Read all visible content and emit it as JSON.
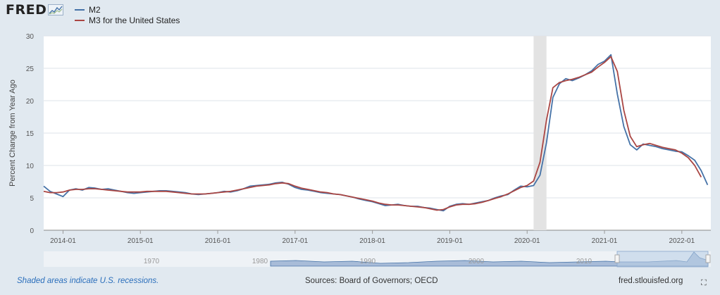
{
  "logo": {
    "text": "FRED",
    "icon": "fred-sparkline-icon"
  },
  "legend": [
    {
      "label": "M2",
      "color": "#4572a7"
    },
    {
      "label": "M3 for the United States",
      "color": "#aa4643"
    }
  ],
  "footer": {
    "recessions_note": "Shaded areas indicate U.S. recessions.",
    "sources": "Sources: Board of Governors; OECD",
    "site": "fred.stlouisfed.org"
  },
  "fullscreen_icon": "fullscreen-icon",
  "chart_data": {
    "type": "line",
    "ylabel": "Percent Change from Year Ago",
    "ylim": [
      0,
      30
    ],
    "y_ticks": [
      0,
      5,
      10,
      15,
      20,
      25,
      30
    ],
    "x_range": [
      "2013-10",
      "2022-05"
    ],
    "x_ticks": [
      "2014-01",
      "2015-01",
      "2016-01",
      "2017-01",
      "2018-01",
      "2019-01",
      "2020-01",
      "2021-01",
      "2022-01"
    ],
    "grid": "horizontal",
    "legend_position": "top-left",
    "recession": {
      "start": "2020-02",
      "end": "2020-04"
    },
    "series": [
      {
        "name": "M2",
        "color": "#4572a7",
        "x": [
          "2013-10",
          "2013-11",
          "2013-12",
          "2014-01",
          "2014-02",
          "2014-03",
          "2014-04",
          "2014-05",
          "2014-06",
          "2014-07",
          "2014-08",
          "2014-09",
          "2014-10",
          "2014-11",
          "2014-12",
          "2015-01",
          "2015-02",
          "2015-03",
          "2015-04",
          "2015-05",
          "2015-06",
          "2015-07",
          "2015-08",
          "2015-09",
          "2015-10",
          "2015-11",
          "2015-12",
          "2016-01",
          "2016-02",
          "2016-03",
          "2016-04",
          "2016-05",
          "2016-06",
          "2016-07",
          "2016-08",
          "2016-09",
          "2016-10",
          "2016-11",
          "2016-12",
          "2017-01",
          "2017-02",
          "2017-03",
          "2017-04",
          "2017-05",
          "2017-06",
          "2017-07",
          "2017-08",
          "2017-09",
          "2017-10",
          "2017-11",
          "2017-12",
          "2018-01",
          "2018-02",
          "2018-03",
          "2018-04",
          "2018-05",
          "2018-06",
          "2018-07",
          "2018-08",
          "2018-09",
          "2018-10",
          "2018-11",
          "2018-12",
          "2019-01",
          "2019-02",
          "2019-03",
          "2019-04",
          "2019-05",
          "2019-06",
          "2019-07",
          "2019-08",
          "2019-09",
          "2019-10",
          "2019-11",
          "2019-12",
          "2020-01",
          "2020-02",
          "2020-03",
          "2020-04",
          "2020-05",
          "2020-06",
          "2020-07",
          "2020-08",
          "2020-09",
          "2020-10",
          "2020-11",
          "2020-12",
          "2021-01",
          "2021-02",
          "2021-03",
          "2021-04",
          "2021-05",
          "2021-06",
          "2021-07",
          "2021-08",
          "2021-09",
          "2021-10",
          "2021-11",
          "2021-12",
          "2022-01",
          "2022-02",
          "2022-03",
          "2022-04",
          "2022-05"
        ],
        "values": [
          6.8,
          6.0,
          5.6,
          5.2,
          6.2,
          6.4,
          6.2,
          6.6,
          6.5,
          6.3,
          6.4,
          6.2,
          6.0,
          5.8,
          5.7,
          5.8,
          5.9,
          6.0,
          6.1,
          6.1,
          6.0,
          5.9,
          5.8,
          5.6,
          5.5,
          5.6,
          5.7,
          5.8,
          6.0,
          5.9,
          6.1,
          6.4,
          6.8,
          6.9,
          7.0,
          7.1,
          7.3,
          7.4,
          7.1,
          6.6,
          6.3,
          6.2,
          6.0,
          5.8,
          5.7,
          5.6,
          5.5,
          5.3,
          5.1,
          4.8,
          4.6,
          4.4,
          4.1,
          3.8,
          3.9,
          4.0,
          3.8,
          3.7,
          3.7,
          3.5,
          3.4,
          3.2,
          3.0,
          3.7,
          4.0,
          4.1,
          4.0,
          4.2,
          4.4,
          4.6,
          5.0,
          5.3,
          5.5,
          6.2,
          6.8,
          6.7,
          6.9,
          8.5,
          13.5,
          20.5,
          22.6,
          23.4,
          23.1,
          23.5,
          24.0,
          24.6,
          25.6,
          26.1,
          27.1,
          21.0,
          16.0,
          13.2,
          12.4,
          13.3,
          13.1,
          12.9,
          12.6,
          12.4,
          12.2,
          12.1,
          11.5,
          10.8,
          9.2,
          7.0
        ]
      },
      {
        "name": "M3 for the United States",
        "color": "#aa4643",
        "x": [
          "2013-10",
          "2013-11",
          "2013-12",
          "2014-01",
          "2014-02",
          "2014-03",
          "2014-04",
          "2014-05",
          "2014-06",
          "2014-07",
          "2014-08",
          "2014-09",
          "2014-10",
          "2014-11",
          "2014-12",
          "2015-01",
          "2015-02",
          "2015-03",
          "2015-04",
          "2015-05",
          "2015-06",
          "2015-07",
          "2015-08",
          "2015-09",
          "2015-10",
          "2015-11",
          "2015-12",
          "2016-01",
          "2016-02",
          "2016-03",
          "2016-04",
          "2016-05",
          "2016-06",
          "2016-07",
          "2016-08",
          "2016-09",
          "2016-10",
          "2016-11",
          "2016-12",
          "2017-01",
          "2017-02",
          "2017-03",
          "2017-04",
          "2017-05",
          "2017-06",
          "2017-07",
          "2017-08",
          "2017-09",
          "2017-10",
          "2017-11",
          "2017-12",
          "2018-01",
          "2018-02",
          "2018-03",
          "2018-04",
          "2018-05",
          "2018-06",
          "2018-07",
          "2018-08",
          "2018-09",
          "2018-10",
          "2018-11",
          "2018-12",
          "2019-01",
          "2019-02",
          "2019-03",
          "2019-04",
          "2019-05",
          "2019-06",
          "2019-07",
          "2019-08",
          "2019-09",
          "2019-10",
          "2019-11",
          "2019-12",
          "2020-01",
          "2020-02",
          "2020-03",
          "2020-04",
          "2020-05",
          "2020-06",
          "2020-07",
          "2020-08",
          "2020-09",
          "2020-10",
          "2020-11",
          "2020-12",
          "2021-01",
          "2021-02",
          "2021-03",
          "2021-04",
          "2021-05",
          "2021-06",
          "2021-07",
          "2021-08",
          "2021-09",
          "2021-10",
          "2021-11",
          "2021-12",
          "2022-01",
          "2022-02",
          "2022-03",
          "2022-04"
        ],
        "values": [
          6.0,
          5.8,
          5.8,
          5.9,
          6.2,
          6.3,
          6.3,
          6.4,
          6.4,
          6.3,
          6.2,
          6.1,
          6.0,
          5.9,
          5.9,
          5.9,
          6.0,
          6.0,
          6.0,
          6.0,
          5.9,
          5.8,
          5.7,
          5.6,
          5.6,
          5.6,
          5.7,
          5.8,
          5.9,
          6.0,
          6.2,
          6.4,
          6.6,
          6.8,
          6.9,
          7.0,
          7.2,
          7.3,
          7.2,
          6.8,
          6.5,
          6.3,
          6.1,
          5.9,
          5.8,
          5.6,
          5.5,
          5.3,
          5.1,
          4.9,
          4.7,
          4.5,
          4.2,
          4.0,
          3.9,
          3.9,
          3.8,
          3.7,
          3.6,
          3.5,
          3.3,
          3.1,
          3.2,
          3.6,
          3.9,
          4.0,
          4.0,
          4.1,
          4.3,
          4.6,
          4.9,
          5.2,
          5.6,
          6.1,
          6.6,
          6.9,
          7.6,
          10.5,
          17.0,
          22.0,
          22.8,
          23.1,
          23.3,
          23.6,
          24.0,
          24.4,
          25.2,
          25.9,
          26.8,
          24.5,
          18.5,
          14.5,
          12.9,
          13.2,
          13.4,
          13.1,
          12.8,
          12.6,
          12.4,
          11.9,
          11.2,
          10.0,
          8.2
        ]
      }
    ]
  }
}
